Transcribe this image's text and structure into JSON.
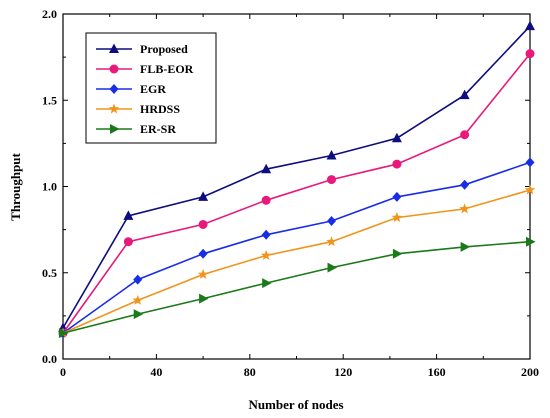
{
  "chart_data": {
    "type": "line",
    "title": "",
    "xlabel": "Number of nodes",
    "ylabel": "Throughput",
    "xlim": [
      0,
      200
    ],
    "ylim": [
      0.0,
      2.0
    ],
    "xticks": [
      0,
      40,
      80,
      120,
      160,
      200
    ],
    "yticks": [
      0.0,
      0.5,
      1.0,
      1.5,
      2.0
    ],
    "xtick_labels": [
      "0",
      "40",
      "80",
      "120",
      "160",
      "200"
    ],
    "ytick_labels": [
      "0.0",
      "0.5",
      "1.0",
      "1.5",
      "2.0"
    ],
    "grid": false,
    "legend_position": "top-left",
    "series": [
      {
        "name": "Proposed",
        "color": "#0d0d80",
        "marker": "triangle-up",
        "x": [
          0,
          28,
          60,
          87,
          115,
          143,
          172,
          200
        ],
        "y": [
          0.18,
          0.83,
          0.94,
          1.1,
          1.18,
          1.28,
          1.53,
          1.93
        ]
      },
      {
        "name": "FLB-EOR",
        "color": "#e8197a",
        "marker": "circle",
        "x": [
          0,
          28,
          60,
          87,
          115,
          143,
          172,
          200
        ],
        "y": [
          0.15,
          0.68,
          0.78,
          0.92,
          1.04,
          1.13,
          1.3,
          1.77
        ]
      },
      {
        "name": "EGR",
        "color": "#1a2de6",
        "marker": "diamond",
        "x": [
          0,
          32,
          60,
          87,
          115,
          143,
          172,
          200
        ],
        "y": [
          0.15,
          0.46,
          0.61,
          0.72,
          0.8,
          0.94,
          1.01,
          1.14
        ]
      },
      {
        "name": "HRDSS",
        "color": "#f0941c",
        "marker": "star",
        "x": [
          0,
          32,
          60,
          87,
          115,
          143,
          172,
          200
        ],
        "y": [
          0.15,
          0.34,
          0.49,
          0.6,
          0.68,
          0.82,
          0.87,
          0.98
        ]
      },
      {
        "name": "ER-SR",
        "color": "#1a7a1a",
        "marker": "triangle-right",
        "x": [
          0,
          32,
          60,
          87,
          115,
          143,
          172,
          200
        ],
        "y": [
          0.15,
          0.26,
          0.35,
          0.44,
          0.53,
          0.61,
          0.65,
          0.68
        ]
      }
    ]
  }
}
